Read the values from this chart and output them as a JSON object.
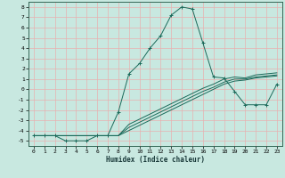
{
  "xlabel": "Humidex (Indice chaleur)",
  "bg_color": "#c8e8e0",
  "grid_color": "#e8b0b0",
  "line_color": "#1a6a5a",
  "xlim": [
    -0.5,
    23.5
  ],
  "ylim": [
    -5.5,
    8.5
  ],
  "xticks": [
    0,
    1,
    2,
    3,
    4,
    5,
    6,
    7,
    8,
    9,
    10,
    11,
    12,
    13,
    14,
    15,
    16,
    17,
    18,
    19,
    20,
    21,
    22,
    23
  ],
  "yticks": [
    -5,
    -4,
    -3,
    -2,
    -1,
    0,
    1,
    2,
    3,
    4,
    5,
    6,
    7,
    8
  ],
  "main_x": [
    0,
    1,
    2,
    3,
    4,
    5,
    6,
    7,
    8,
    9,
    10,
    11,
    12,
    13,
    14,
    15,
    16,
    17,
    18,
    19,
    20,
    21,
    22,
    23
  ],
  "main_y": [
    -4.5,
    -4.5,
    -4.5,
    -5.0,
    -5.0,
    -5.0,
    -4.5,
    -4.5,
    -2.2,
    1.5,
    2.5,
    4.0,
    5.2,
    7.2,
    8.0,
    7.8,
    4.5,
    1.2,
    1.1,
    -0.2,
    -1.5,
    -1.5,
    -1.5,
    0.5
  ],
  "line2_x": [
    0,
    1,
    2,
    3,
    4,
    5,
    6,
    7,
    8,
    9,
    10,
    11,
    12,
    13,
    14,
    15,
    16,
    17,
    18,
    19,
    20,
    21,
    22,
    23
  ],
  "line2_y": [
    -4.5,
    -4.5,
    -4.5,
    -4.5,
    -4.5,
    -4.5,
    -4.5,
    -4.5,
    -4.5,
    -4.0,
    -3.5,
    -3.0,
    -2.5,
    -2.0,
    -1.5,
    -1.0,
    -0.5,
    0.0,
    0.5,
    0.8,
    0.9,
    1.1,
    1.2,
    1.3
  ],
  "line3_x": [
    0,
    1,
    2,
    3,
    4,
    5,
    6,
    7,
    8,
    9,
    10,
    11,
    12,
    13,
    14,
    15,
    16,
    17,
    18,
    19,
    20,
    21,
    22,
    23
  ],
  "line3_y": [
    -4.5,
    -4.5,
    -4.5,
    -4.5,
    -4.5,
    -4.5,
    -4.5,
    -4.5,
    -4.5,
    -3.7,
    -3.2,
    -2.7,
    -2.2,
    -1.7,
    -1.2,
    -0.7,
    -0.2,
    0.2,
    0.7,
    1.0,
    1.0,
    1.2,
    1.3,
    1.4
  ],
  "line4_x": [
    0,
    1,
    2,
    3,
    4,
    5,
    6,
    7,
    8,
    9,
    10,
    11,
    12,
    13,
    14,
    15,
    16,
    17,
    18,
    19,
    20,
    21,
    22,
    23
  ],
  "line4_y": [
    -4.5,
    -4.5,
    -4.5,
    -4.5,
    -4.5,
    -4.5,
    -4.5,
    -4.5,
    -4.5,
    -3.4,
    -2.9,
    -2.4,
    -1.9,
    -1.4,
    -0.9,
    -0.4,
    0.1,
    0.5,
    1.0,
    1.2,
    1.1,
    1.4,
    1.5,
    1.6
  ]
}
